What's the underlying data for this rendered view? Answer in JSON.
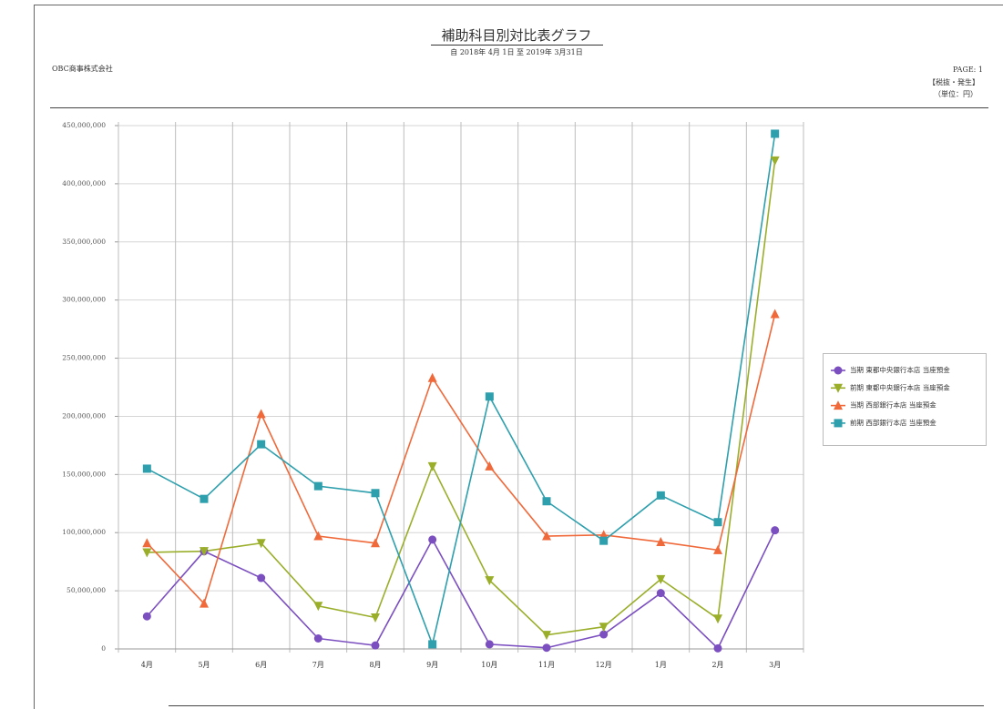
{
  "header": {
    "title": "補助科目別対比表グラフ",
    "period": "自 2018年  4月 1日  至 2019年  3月31日",
    "company": "OBC商事株式会社",
    "page": "PAGE:   1",
    "tax": "【税抜・発生】",
    "unit": "（単位：円）"
  },
  "chart_data": {
    "type": "line",
    "categories": [
      "4月",
      "5月",
      "6月",
      "7月",
      "8月",
      "9月",
      "10月",
      "11月",
      "12月",
      "1月",
      "2月",
      "3月"
    ],
    "series": [
      {
        "name": "当期 東都中央銀行本店 当座預金",
        "color": "#7b4fc0",
        "marker": "circle",
        "values": [
          28000000,
          84000000,
          61000000,
          9000000,
          3000000,
          94000000,
          4000000,
          1000000,
          12500000,
          48000000,
          500000,
          102000000
        ]
      },
      {
        "name": "前期 東都中央銀行本店 当座預金",
        "color": "#9aae2a",
        "marker": "triangle-down",
        "values": [
          83000000,
          84000000,
          91000000,
          37000000,
          27000000,
          157000000,
          59000000,
          12000000,
          19000000,
          60000000,
          26000000,
          420000000
        ]
      },
      {
        "name": "当期 西部銀行本店 当座預金",
        "color": "#f0693a",
        "marker": "triangle-up",
        "values": [
          91000000,
          39000000,
          202000000,
          97000000,
          91000000,
          233000000,
          157000000,
          97000000,
          98000000,
          92000000,
          85000000,
          288000000
        ]
      },
      {
        "name": "前期 西部銀行本店 当座預金",
        "color": "#2d9fad",
        "marker": "square",
        "values": [
          155000000,
          129000000,
          176000000,
          140000000,
          134000000,
          4000000,
          217000000,
          127000000,
          93000000,
          132000000,
          109000000,
          443000000
        ]
      }
    ],
    "ylim": [
      0,
      450000000
    ],
    "yticks": [
      0,
      {
        "value": 50000000,
        "label": "50,000,000"
      },
      {
        "value": 100000000,
        "label": "100,000,000"
      },
      {
        "value": 150000000,
        "label": "150,000,000"
      },
      {
        "value": 200000000,
        "label": "200,000,000"
      },
      {
        "value": 250000000,
        "label": "250,000,000"
      },
      {
        "value": 300000000,
        "label": "300,000,000"
      },
      {
        "value": 350000000,
        "label": "350,000,000"
      },
      {
        "value": 400000000,
        "label": "400,000,000"
      },
      {
        "value": 450000000,
        "label": "450,000,000"
      }
    ],
    "grid": true,
    "legend": "right"
  }
}
